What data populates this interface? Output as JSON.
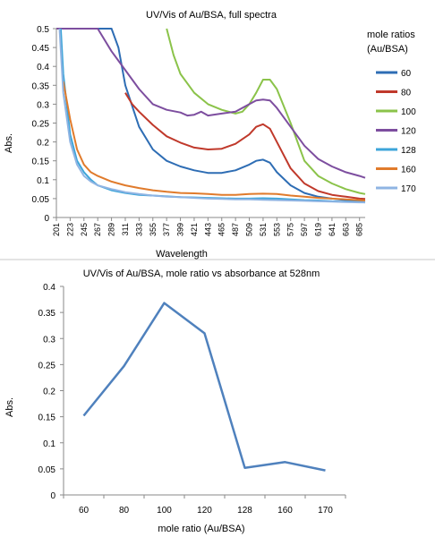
{
  "chart_data": [
    {
      "type": "line",
      "title": "UV/Vis of Au/BSA, full spectra",
      "xlabel": "Wavelength",
      "ylabel": "Abs.",
      "legend_title": "mole ratios (Au/BSA)",
      "legend_position": "right",
      "grid": false,
      "xlim": [
        201,
        694
      ],
      "ylim": [
        0,
        0.5
      ],
      "x_ticks": [
        201,
        223,
        245,
        267,
        289,
        311,
        333,
        355,
        377,
        399,
        421,
        443,
        465,
        487,
        509,
        531,
        553,
        575,
        597,
        619,
        641,
        663,
        685
      ],
      "y_ticks": [
        "0",
        "0.05",
        "0.1",
        "0.15",
        "0.2",
        "0.25",
        "0.3",
        "0.35",
        "0.4",
        "0.45",
        "0.5"
      ],
      "series": [
        {
          "name": "60",
          "color": "#2E6DB4",
          "x": [
            267,
            289,
            300,
            311,
            333,
            355,
            377,
            399,
            421,
            443,
            465,
            487,
            509,
            520,
            531,
            542,
            553,
            575,
            597,
            619,
            641,
            663,
            685,
            694
          ],
          "y": [
            0.5,
            0.5,
            0.45,
            0.35,
            0.24,
            0.18,
            0.15,
            0.135,
            0.125,
            0.118,
            0.118,
            0.125,
            0.14,
            0.15,
            0.153,
            0.145,
            0.12,
            0.085,
            0.065,
            0.055,
            0.05,
            0.046,
            0.043,
            0.042
          ]
        },
        {
          "name": "80",
          "color": "#C0392B",
          "x": [
            311,
            322,
            333,
            355,
            377,
            399,
            421,
            443,
            465,
            487,
            509,
            520,
            531,
            542,
            553,
            575,
            597,
            619,
            641,
            663,
            685,
            694
          ],
          "y": [
            0.33,
            0.3,
            0.28,
            0.245,
            0.215,
            0.198,
            0.185,
            0.18,
            0.182,
            0.195,
            0.22,
            0.24,
            0.247,
            0.235,
            0.2,
            0.13,
            0.09,
            0.07,
            0.06,
            0.055,
            0.05,
            0.049
          ]
        },
        {
          "name": "100",
          "color": "#8BC34A",
          "x": [
            377,
            388,
            399,
            421,
            443,
            465,
            487,
            498,
            509,
            520,
            531,
            542,
            553,
            575,
            597,
            619,
            641,
            663,
            685,
            694
          ],
          "y": [
            0.5,
            0.43,
            0.38,
            0.33,
            0.3,
            0.285,
            0.275,
            0.28,
            0.3,
            0.33,
            0.365,
            0.365,
            0.34,
            0.25,
            0.15,
            0.11,
            0.09,
            0.075,
            0.065,
            0.062
          ]
        },
        {
          "name": "120",
          "color": "#7D4E9F",
          "x": [
            201,
            223,
            245,
            267,
            289,
            311,
            333,
            355,
            377,
            399,
            410,
            421,
            432,
            443,
            465,
            487,
            509,
            520,
            531,
            542,
            553,
            575,
            597,
            619,
            641,
            663,
            685,
            694
          ],
          "y": [
            0.5,
            0.5,
            0.5,
            0.5,
            0.44,
            0.39,
            0.34,
            0.3,
            0.285,
            0.278,
            0.27,
            0.272,
            0.28,
            0.27,
            0.275,
            0.28,
            0.3,
            0.31,
            0.312,
            0.31,
            0.29,
            0.24,
            0.19,
            0.155,
            0.135,
            0.12,
            0.11,
            0.105
          ]
        },
        {
          "name": "128",
          "color": "#3DA5D9",
          "x": [
            208,
            212,
            223,
            234,
            245,
            256,
            267,
            289,
            311,
            333,
            355,
            377,
            399,
            421,
            443,
            465,
            487,
            509,
            531,
            553,
            575,
            597,
            619,
            641,
            663,
            685,
            694
          ],
          "y": [
            0.5,
            0.38,
            0.22,
            0.15,
            0.12,
            0.1,
            0.085,
            0.072,
            0.065,
            0.06,
            0.058,
            0.056,
            0.054,
            0.053,
            0.052,
            0.051,
            0.05,
            0.05,
            0.051,
            0.05,
            0.048,
            0.046,
            0.045,
            0.043,
            0.042,
            0.041,
            0.04
          ]
        },
        {
          "name": "160",
          "color": "#E07B2C",
          "x": [
            212,
            223,
            234,
            245,
            256,
            267,
            289,
            311,
            333,
            355,
            377,
            399,
            421,
            443,
            465,
            487,
            509,
            531,
            553,
            575,
            597,
            619,
            641,
            663,
            685,
            694
          ],
          "y": [
            0.36,
            0.26,
            0.18,
            0.14,
            0.12,
            0.11,
            0.095,
            0.085,
            0.078,
            0.072,
            0.068,
            0.065,
            0.064,
            0.062,
            0.06,
            0.06,
            0.062,
            0.063,
            0.062,
            0.058,
            0.055,
            0.052,
            0.05,
            0.048,
            0.046,
            0.045
          ]
        },
        {
          "name": "170",
          "color": "#8FB4E3",
          "x": [
            206,
            212,
            223,
            234,
            245,
            256,
            267,
            289,
            311,
            333,
            355,
            377,
            399,
            421,
            443,
            465,
            487,
            509,
            531,
            553,
            575,
            597,
            619,
            641,
            663,
            685,
            694
          ],
          "y": [
            0.5,
            0.33,
            0.2,
            0.14,
            0.11,
            0.095,
            0.085,
            0.075,
            0.067,
            0.062,
            0.058,
            0.055,
            0.054,
            0.052,
            0.05,
            0.049,
            0.048,
            0.048,
            0.047,
            0.046,
            0.045,
            0.044,
            0.043,
            0.042,
            0.041,
            0.04,
            0.04
          ]
        }
      ]
    },
    {
      "type": "line",
      "title": "UV/Vis of Au/BSA, mole ratio vs absorbance at 528nm",
      "xlabel": "mole ratio (Au/BSA)",
      "ylabel": "Abs.",
      "grid": false,
      "ylim": [
        0,
        0.4
      ],
      "y_ticks": [
        "0",
        "0.05",
        "0.1",
        "0.15",
        "0.2",
        "0.25",
        "0.3",
        "0.35",
        "0.4"
      ],
      "categories": [
        "60",
        "80",
        "100",
        "120",
        "128",
        "160",
        "170"
      ],
      "series": [
        {
          "color": "#4F81BD",
          "values": [
            0.152,
            0.247,
            0.368,
            0.31,
            0.052,
            0.063,
            0.047
          ]
        }
      ]
    }
  ]
}
